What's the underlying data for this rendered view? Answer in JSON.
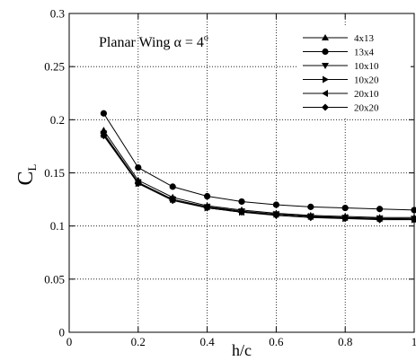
{
  "chart_data": {
    "type": "line",
    "title": "",
    "xlabel": "h/c",
    "ylabel_main": "C",
    "ylabel_sub": "L",
    "xlim": [
      0,
      1
    ],
    "ylim": [
      0,
      0.3
    ],
    "xticks": [
      0,
      0.2,
      0.4,
      0.6,
      0.8,
      1
    ],
    "xtick_labels": [
      "0",
      "0.2",
      "0.4",
      "0.6",
      "0.8",
      "1"
    ],
    "yticks": [
      0,
      0.05,
      0.1,
      0.15,
      0.2,
      0.25,
      0.3
    ],
    "ytick_labels": [
      "0",
      "0.05",
      "0.1",
      "0.15",
      "0.2",
      "0.25",
      "0.3"
    ],
    "grid": true,
    "legend_position": "top-right",
    "annotation": {
      "prefix": "Planar Wing ",
      "alpha_symbol": "α",
      "suffix": " = 4",
      "degree": "o"
    },
    "x": [
      0.1,
      0.2,
      0.3,
      0.4,
      0.5,
      0.6,
      0.7,
      0.8,
      0.9,
      1.0
    ],
    "series": [
      {
        "name": "4x13",
        "marker": "triangle-up",
        "values": [
          0.19,
          0.143,
          0.127,
          0.119,
          0.115,
          0.112,
          0.11,
          0.109,
          0.108,
          0.108
        ]
      },
      {
        "name": "13x4",
        "marker": "circle",
        "values": [
          0.206,
          0.155,
          0.137,
          0.128,
          0.123,
          0.12,
          0.118,
          0.117,
          0.116,
          0.115
        ]
      },
      {
        "name": "10x10",
        "marker": "triangle-down",
        "values": [
          0.187,
          0.141,
          0.125,
          0.118,
          0.114,
          0.111,
          0.109,
          0.108,
          0.107,
          0.107
        ]
      },
      {
        "name": "10x20",
        "marker": "triangle-right",
        "values": [
          0.186,
          0.14,
          0.125,
          0.117,
          0.113,
          0.111,
          0.109,
          0.107,
          0.107,
          0.106
        ]
      },
      {
        "name": "20x10",
        "marker": "triangle-left",
        "values": [
          0.187,
          0.141,
          0.125,
          0.118,
          0.113,
          0.111,
          0.109,
          0.108,
          0.107,
          0.106
        ]
      },
      {
        "name": "20x20",
        "marker": "diamond",
        "values": [
          0.185,
          0.14,
          0.124,
          0.117,
          0.113,
          0.11,
          0.108,
          0.107,
          0.106,
          0.106
        ]
      }
    ]
  }
}
